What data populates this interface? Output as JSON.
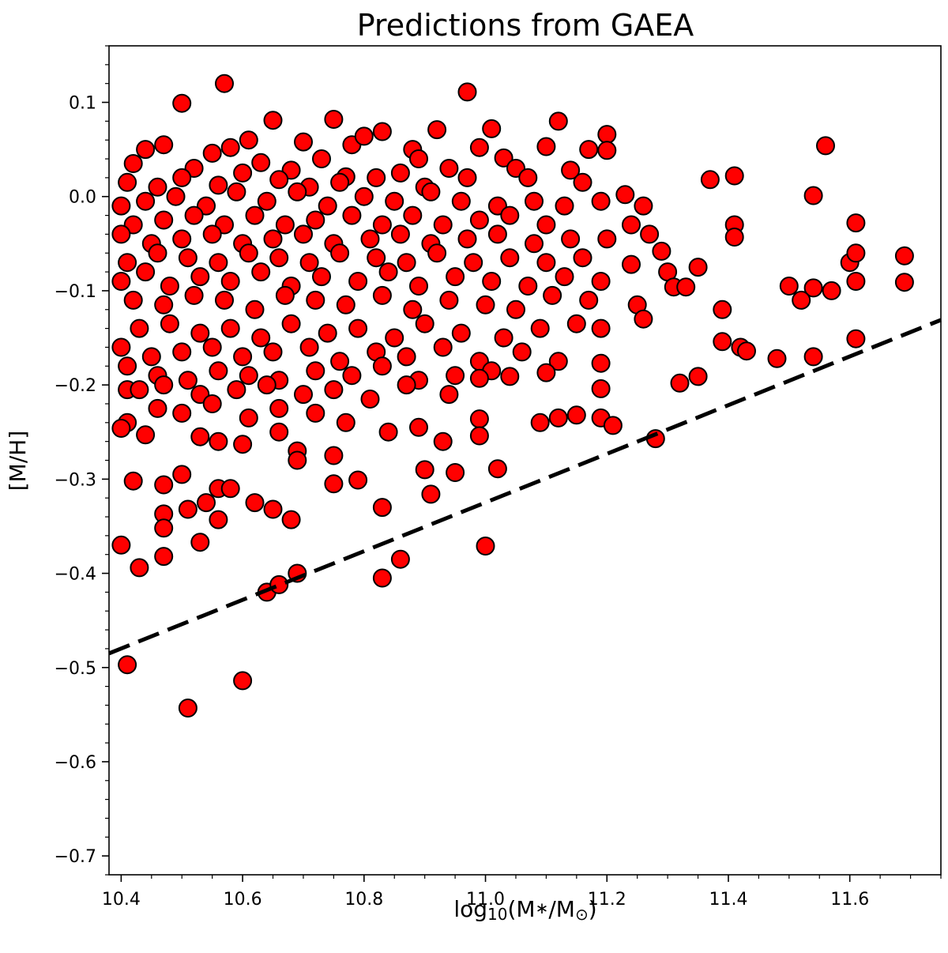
{
  "chart_data": {
    "type": "scatter",
    "title": "Predictions from GAEA",
    "xlabel": {
      "base": "log",
      "sub": "10",
      "rest": "(M",
      "star": "∗",
      "mid": "/M",
      "sun": "⊙",
      "end": ")"
    },
    "ylabel": "[M/H]",
    "xlim": [
      10.38,
      11.75
    ],
    "ylim": [
      -0.72,
      0.16
    ],
    "xticks": [
      10.4,
      10.6,
      10.8,
      11.0,
      11.2,
      11.4,
      11.6
    ],
    "xtick_labels": [
      "10.4",
      "10.6",
      "10.8",
      "11.0",
      "11.2",
      "11.4",
      "11.6"
    ],
    "yticks": [
      0.1,
      0.0,
      -0.1,
      -0.2,
      -0.3,
      -0.4,
      -0.5,
      -0.6,
      -0.7
    ],
    "ytick_labels": [
      "0.1",
      "0.0",
      "−0.1",
      "−0.2",
      "−0.3",
      "−0.4",
      "−0.5",
      "−0.6",
      "−0.7"
    ],
    "grid": false,
    "legend": "none",
    "marker_color": "#ff0000",
    "marker_edge_color": "#000000",
    "line_color": "#000000",
    "line": {
      "style": "dashed",
      "x": [
        10.38,
        11.75
      ],
      "y": [
        -0.485,
        -0.131
      ]
    },
    "series": [
      {
        "points": [
          [
            10.57,
            0.12
          ],
          [
            10.97,
            0.111
          ],
          [
            10.5,
            0.099
          ],
          [
            11.12,
            0.08
          ],
          [
            10.65,
            0.081
          ],
          [
            10.75,
            0.082
          ],
          [
            10.83,
            0.069
          ],
          [
            10.92,
            0.071
          ],
          [
            11.01,
            0.072
          ],
          [
            11.2,
            0.066
          ],
          [
            11.56,
            0.054
          ],
          [
            10.47,
            0.055
          ],
          [
            10.44,
            0.05
          ],
          [
            10.58,
            0.052
          ],
          [
            10.7,
            0.058
          ],
          [
            10.78,
            0.055
          ],
          [
            10.88,
            0.05
          ],
          [
            10.99,
            0.052
          ],
          [
            11.1,
            0.053
          ],
          [
            11.17,
            0.05
          ],
          [
            10.55,
            0.046
          ],
          [
            10.61,
            0.06
          ],
          [
            10.8,
            0.064
          ],
          [
            10.89,
            0.04
          ],
          [
            11.03,
            0.041
          ],
          [
            11.2,
            0.049
          ],
          [
            10.42,
            0.035
          ],
          [
            10.52,
            0.03
          ],
          [
            10.63,
            0.036
          ],
          [
            10.68,
            0.028
          ],
          [
            10.73,
            0.04
          ],
          [
            10.77,
            0.021
          ],
          [
            10.86,
            0.025
          ],
          [
            10.94,
            0.03
          ],
          [
            11.05,
            0.03
          ],
          [
            11.14,
            0.028
          ],
          [
            11.41,
            0.022
          ],
          [
            11.37,
            0.018
          ],
          [
            10.41,
            0.015
          ],
          [
            10.46,
            0.01
          ],
          [
            10.5,
            0.02
          ],
          [
            10.56,
            0.012
          ],
          [
            10.6,
            0.025
          ],
          [
            10.66,
            0.018
          ],
          [
            10.71,
            0.01
          ],
          [
            10.76,
            0.015
          ],
          [
            10.82,
            0.02
          ],
          [
            10.9,
            0.01
          ],
          [
            10.97,
            0.02
          ],
          [
            11.07,
            0.02
          ],
          [
            11.16,
            0.015
          ],
          [
            11.23,
            0.002
          ],
          [
            11.54,
            0.001
          ],
          [
            10.4,
            -0.01
          ],
          [
            10.44,
            -0.005
          ],
          [
            10.49,
            0.0
          ],
          [
            10.54,
            -0.01
          ],
          [
            10.59,
            0.005
          ],
          [
            10.64,
            -0.005
          ],
          [
            10.69,
            0.005
          ],
          [
            10.74,
            -0.01
          ],
          [
            10.8,
            0.0
          ],
          [
            10.85,
            -0.005
          ],
          [
            10.91,
            0.005
          ],
          [
            10.96,
            -0.005
          ],
          [
            11.02,
            -0.01
          ],
          [
            11.08,
            -0.005
          ],
          [
            11.13,
            -0.01
          ],
          [
            11.19,
            -0.005
          ],
          [
            11.26,
            -0.01
          ],
          [
            10.42,
            -0.03
          ],
          [
            10.47,
            -0.025
          ],
          [
            10.52,
            -0.02
          ],
          [
            10.57,
            -0.03
          ],
          [
            10.62,
            -0.02
          ],
          [
            10.67,
            -0.03
          ],
          [
            10.72,
            -0.025
          ],
          [
            10.78,
            -0.02
          ],
          [
            10.83,
            -0.03
          ],
          [
            10.88,
            -0.02
          ],
          [
            10.93,
            -0.03
          ],
          [
            10.99,
            -0.025
          ],
          [
            11.04,
            -0.02
          ],
          [
            11.1,
            -0.03
          ],
          [
            11.24,
            -0.03
          ],
          [
            11.27,
            -0.04
          ],
          [
            11.41,
            -0.03
          ],
          [
            11.61,
            -0.028
          ],
          [
            10.4,
            -0.04
          ],
          [
            10.45,
            -0.05
          ],
          [
            10.5,
            -0.045
          ],
          [
            10.55,
            -0.04
          ],
          [
            10.6,
            -0.05
          ],
          [
            10.65,
            -0.045
          ],
          [
            10.7,
            -0.04
          ],
          [
            10.75,
            -0.05
          ],
          [
            10.81,
            -0.045
          ],
          [
            10.86,
            -0.04
          ],
          [
            10.91,
            -0.05
          ],
          [
            10.97,
            -0.045
          ],
          [
            11.02,
            -0.04
          ],
          [
            11.08,
            -0.05
          ],
          [
            11.14,
            -0.045
          ],
          [
            11.2,
            -0.045
          ],
          [
            11.29,
            -0.058
          ],
          [
            11.41,
            -0.043
          ],
          [
            10.41,
            -0.07
          ],
          [
            10.46,
            -0.06
          ],
          [
            10.51,
            -0.065
          ],
          [
            10.56,
            -0.07
          ],
          [
            10.61,
            -0.06
          ],
          [
            10.66,
            -0.065
          ],
          [
            10.71,
            -0.07
          ],
          [
            10.76,
            -0.06
          ],
          [
            10.82,
            -0.065
          ],
          [
            10.87,
            -0.07
          ],
          [
            10.92,
            -0.06
          ],
          [
            10.98,
            -0.07
          ],
          [
            11.04,
            -0.065
          ],
          [
            11.1,
            -0.07
          ],
          [
            11.16,
            -0.065
          ],
          [
            11.24,
            -0.072
          ],
          [
            11.3,
            -0.08
          ],
          [
            11.35,
            -0.075
          ],
          [
            11.6,
            -0.07
          ],
          [
            11.61,
            -0.06
          ],
          [
            11.69,
            -0.063
          ],
          [
            10.4,
            -0.09
          ],
          [
            10.44,
            -0.08
          ],
          [
            10.48,
            -0.095
          ],
          [
            10.53,
            -0.085
          ],
          [
            10.58,
            -0.09
          ],
          [
            10.63,
            -0.08
          ],
          [
            10.68,
            -0.095
          ],
          [
            10.73,
            -0.085
          ],
          [
            10.79,
            -0.09
          ],
          [
            10.84,
            -0.08
          ],
          [
            10.89,
            -0.095
          ],
          [
            10.95,
            -0.085
          ],
          [
            11.01,
            -0.09
          ],
          [
            11.07,
            -0.095
          ],
          [
            11.13,
            -0.085
          ],
          [
            11.19,
            -0.09
          ],
          [
            11.31,
            -0.096
          ],
          [
            11.33,
            -0.096
          ],
          [
            11.5,
            -0.095
          ],
          [
            11.54,
            -0.097
          ],
          [
            11.57,
            -0.1
          ],
          [
            11.61,
            -0.09
          ],
          [
            11.69,
            -0.091
          ],
          [
            10.42,
            -0.11
          ],
          [
            10.47,
            -0.115
          ],
          [
            10.52,
            -0.105
          ],
          [
            10.57,
            -0.11
          ],
          [
            10.62,
            -0.12
          ],
          [
            10.67,
            -0.105
          ],
          [
            10.72,
            -0.11
          ],
          [
            10.77,
            -0.115
          ],
          [
            10.83,
            -0.105
          ],
          [
            10.88,
            -0.12
          ],
          [
            10.94,
            -0.11
          ],
          [
            11.0,
            -0.115
          ],
          [
            11.05,
            -0.12
          ],
          [
            11.11,
            -0.105
          ],
          [
            11.17,
            -0.11
          ],
          [
            11.25,
            -0.115
          ],
          [
            11.39,
            -0.12
          ],
          [
            11.52,
            -0.11
          ],
          [
            10.43,
            -0.14
          ],
          [
            10.48,
            -0.135
          ],
          [
            10.53,
            -0.145
          ],
          [
            10.58,
            -0.14
          ],
          [
            10.63,
            -0.15
          ],
          [
            10.68,
            -0.135
          ],
          [
            10.74,
            -0.145
          ],
          [
            10.79,
            -0.14
          ],
          [
            10.85,
            -0.15
          ],
          [
            10.9,
            -0.135
          ],
          [
            10.96,
            -0.145
          ],
          [
            11.03,
            -0.15
          ],
          [
            11.09,
            -0.14
          ],
          [
            11.15,
            -0.135
          ],
          [
            11.19,
            -0.14
          ],
          [
            11.26,
            -0.13
          ],
          [
            11.61,
            -0.151
          ],
          [
            10.4,
            -0.16
          ],
          [
            10.45,
            -0.17
          ],
          [
            10.5,
            -0.165
          ],
          [
            10.55,
            -0.16
          ],
          [
            10.6,
            -0.17
          ],
          [
            10.65,
            -0.165
          ],
          [
            10.71,
            -0.16
          ],
          [
            10.76,
            -0.175
          ],
          [
            10.82,
            -0.165
          ],
          [
            10.87,
            -0.17
          ],
          [
            10.93,
            -0.16
          ],
          [
            10.99,
            -0.175
          ],
          [
            11.06,
            -0.165
          ],
          [
            11.12,
            -0.175
          ],
          [
            11.39,
            -0.154
          ],
          [
            11.42,
            -0.16
          ],
          [
            11.43,
            -0.164
          ],
          [
            11.48,
            -0.172
          ],
          [
            11.54,
            -0.17
          ],
          [
            10.41,
            -0.18
          ],
          [
            10.46,
            -0.19
          ],
          [
            10.51,
            -0.195
          ],
          [
            10.56,
            -0.185
          ],
          [
            10.61,
            -0.19
          ],
          [
            10.66,
            -0.195
          ],
          [
            10.72,
            -0.185
          ],
          [
            10.78,
            -0.19
          ],
          [
            10.83,
            -0.18
          ],
          [
            10.89,
            -0.195
          ],
          [
            10.95,
            -0.19
          ],
          [
            11.01,
            -0.185
          ],
          [
            11.04,
            -0.191
          ],
          [
            11.1,
            -0.187
          ],
          [
            11.19,
            -0.177
          ],
          [
            11.32,
            -0.198
          ],
          [
            11.35,
            -0.191
          ],
          [
            10.41,
            -0.205
          ],
          [
            10.43,
            -0.205
          ],
          [
            10.47,
            -0.2
          ],
          [
            10.53,
            -0.21
          ],
          [
            10.59,
            -0.205
          ],
          [
            10.64,
            -0.2
          ],
          [
            10.7,
            -0.21
          ],
          [
            10.75,
            -0.205
          ],
          [
            10.81,
            -0.215
          ],
          [
            10.87,
            -0.2
          ],
          [
            10.94,
            -0.21
          ],
          [
            10.99,
            -0.193
          ],
          [
            11.19,
            -0.204
          ],
          [
            10.41,
            -0.24
          ],
          [
            10.46,
            -0.225
          ],
          [
            10.5,
            -0.23
          ],
          [
            10.55,
            -0.22
          ],
          [
            10.61,
            -0.235
          ],
          [
            10.66,
            -0.225
          ],
          [
            10.72,
            -0.23
          ],
          [
            10.77,
            -0.24
          ],
          [
            10.84,
            -0.25
          ],
          [
            10.89,
            -0.245
          ],
          [
            10.93,
            -0.26
          ],
          [
            10.99,
            -0.236
          ],
          [
            11.09,
            -0.24
          ],
          [
            11.12,
            -0.235
          ],
          [
            11.15,
            -0.232
          ],
          [
            11.19,
            -0.235
          ],
          [
            11.21,
            -0.243
          ],
          [
            10.4,
            -0.246
          ],
          [
            10.44,
            -0.253
          ],
          [
            10.53,
            -0.255
          ],
          [
            10.56,
            -0.26
          ],
          [
            10.6,
            -0.263
          ],
          [
            10.66,
            -0.25
          ],
          [
            10.69,
            -0.27
          ],
          [
            10.75,
            -0.275
          ],
          [
            10.9,
            -0.29
          ],
          [
            10.95,
            -0.293
          ],
          [
            10.99,
            -0.254
          ],
          [
            11.02,
            -0.289
          ],
          [
            11.28,
            -0.257
          ],
          [
            10.42,
            -0.302
          ],
          [
            10.47,
            -0.306
          ],
          [
            10.5,
            -0.295
          ],
          [
            10.56,
            -0.31
          ],
          [
            10.58,
            -0.31
          ],
          [
            10.69,
            -0.28
          ],
          [
            10.75,
            -0.305
          ],
          [
            10.79,
            -0.301
          ],
          [
            10.91,
            -0.316
          ],
          [
            10.47,
            -0.337
          ],
          [
            10.51,
            -0.332
          ],
          [
            10.54,
            -0.325
          ],
          [
            10.56,
            -0.343
          ],
          [
            10.62,
            -0.325
          ],
          [
            10.65,
            -0.332
          ],
          [
            10.68,
            -0.343
          ],
          [
            10.83,
            -0.33
          ],
          [
            10.4,
            -0.37
          ],
          [
            10.47,
            -0.352
          ],
          [
            10.53,
            -0.367
          ],
          [
            11.0,
            -0.371
          ],
          [
            10.43,
            -0.394
          ],
          [
            10.47,
            -0.382
          ],
          [
            10.64,
            -0.42
          ],
          [
            10.66,
            -0.412
          ],
          [
            10.69,
            -0.4
          ],
          [
            10.83,
            -0.405
          ],
          [
            10.86,
            -0.385
          ],
          [
            10.41,
            -0.497
          ],
          [
            10.6,
            -0.514
          ],
          [
            10.51,
            -0.543
          ]
        ]
      }
    ]
  }
}
